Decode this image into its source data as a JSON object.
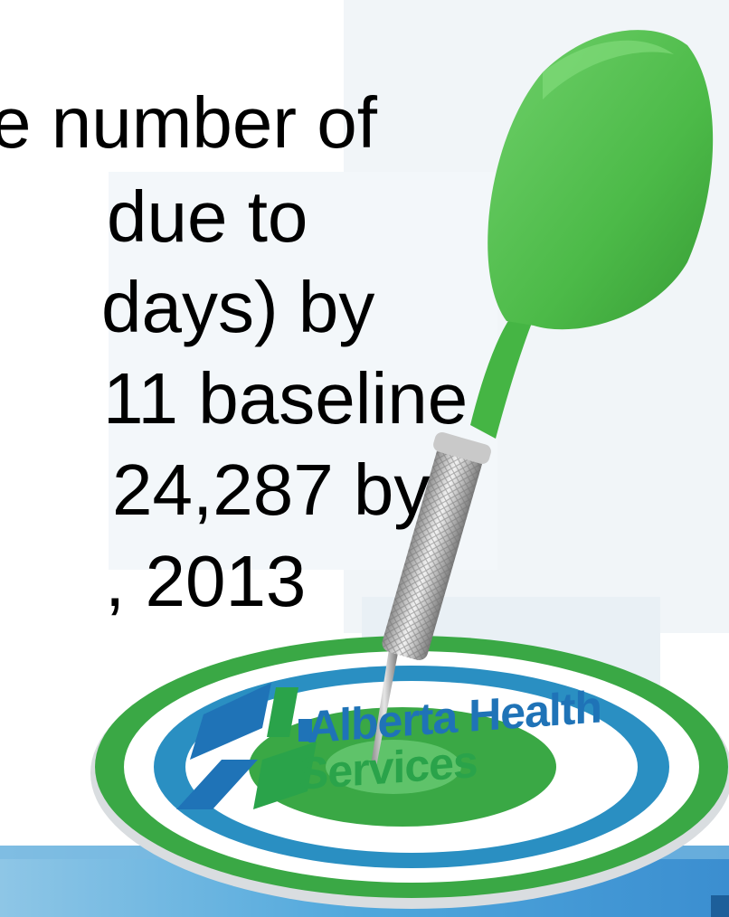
{
  "slide": {
    "lines": [
      "e number of",
      "due to",
      "days)  by",
      "11 baseline",
      "24,287 by",
      ", 2013"
    ]
  },
  "logo": {
    "name_line1": "Alberta Health",
    "name_line2": "Services"
  },
  "colors": {
    "dart_green": "#4cba48",
    "target_green": "#3aa845",
    "target_blue": "#2a8fc2",
    "logo_blue": "#1f73b7",
    "logo_green": "#2aa34a",
    "background_tint": "#eef3f7",
    "floor_blue": "#5aaee0"
  }
}
